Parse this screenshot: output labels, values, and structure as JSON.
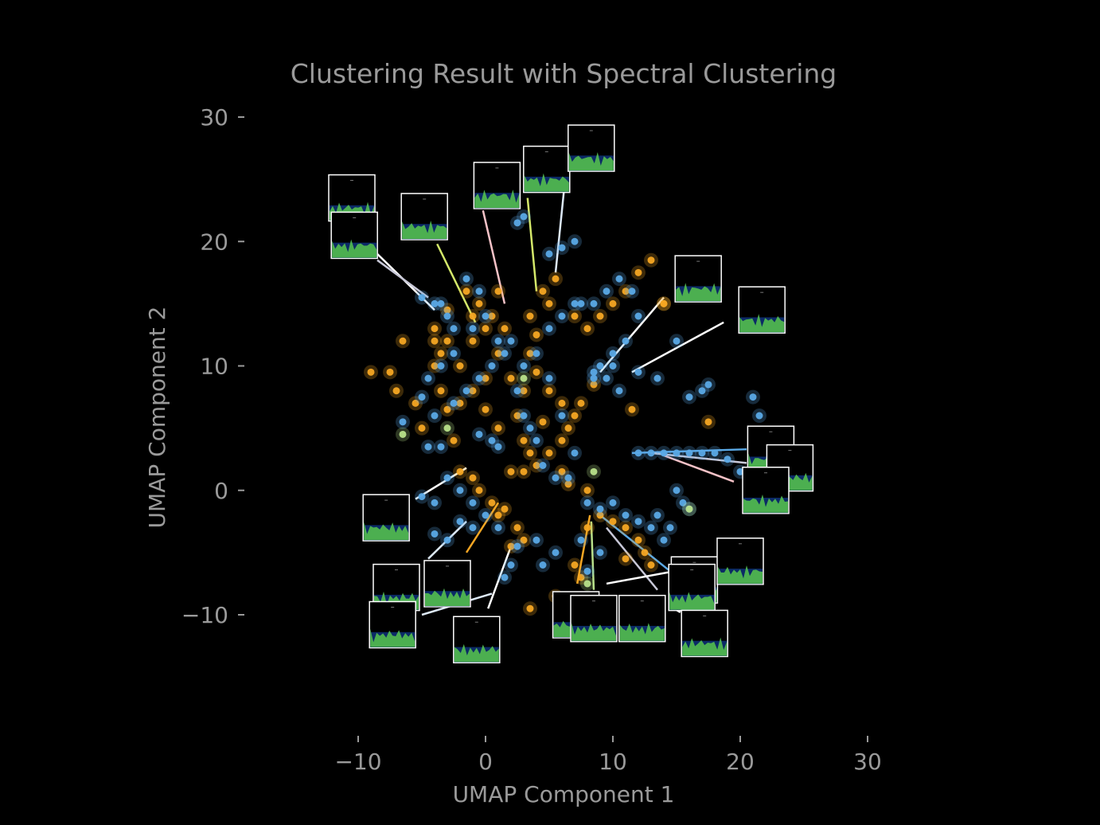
{
  "chart_data": {
    "type": "scatter",
    "title": "Clustering Result with Spectral Clustering",
    "xlabel": "UMAP Component 1",
    "ylabel": "UMAP Component 2",
    "xlim": [
      -12.5,
      30
    ],
    "ylim": [
      -20,
      31
    ],
    "xticks": [
      -10,
      0,
      10,
      20,
      30
    ],
    "yticks": [
      -10,
      0,
      10,
      20,
      30
    ],
    "xtick_labels": [
      "−10",
      "0",
      "10",
      "20",
      "30"
    ],
    "ytick_labels": [
      "−10",
      "0",
      "10",
      "20",
      "30"
    ],
    "grid": false,
    "legend": "none",
    "background": "#000000",
    "text_color": "#9a9a9a",
    "series": [
      {
        "color": "#f5a623",
        "points": [
          [
            -1.5,
            16
          ],
          [
            -0.5,
            15
          ],
          [
            0.5,
            14
          ],
          [
            1.5,
            13
          ],
          [
            1,
            11
          ],
          [
            0,
            9
          ],
          [
            -1,
            8
          ],
          [
            -2,
            7
          ],
          [
            -3,
            6.5
          ],
          [
            -3.5,
            8
          ],
          [
            -4,
            10
          ],
          [
            -3.5,
            11
          ],
          [
            -3,
            12
          ],
          [
            -2,
            10
          ],
          [
            -1,
            12
          ],
          [
            2,
            9
          ],
          [
            3,
            8
          ],
          [
            2.5,
            6
          ],
          [
            3,
            4
          ],
          [
            3.5,
            3
          ],
          [
            4,
            2
          ],
          [
            5,
            3
          ],
          [
            6,
            4
          ],
          [
            6.5,
            5
          ],
          [
            7,
            6
          ],
          [
            5,
            8
          ],
          [
            4,
            9.5
          ],
          [
            3.5,
            11
          ],
          [
            4,
            12.5
          ],
          [
            4.5,
            16
          ],
          [
            5.5,
            17
          ],
          [
            7,
            14
          ],
          [
            8,
            13
          ],
          [
            9,
            14
          ],
          [
            10,
            15
          ],
          [
            11,
            16
          ],
          [
            12,
            17.5
          ],
          [
            13,
            18.5
          ],
          [
            14,
            15
          ],
          [
            -9,
            9.5
          ],
          [
            -7.5,
            9.5
          ],
          [
            -7,
            8
          ],
          [
            -6.5,
            12
          ],
          [
            -5.5,
            7
          ],
          [
            -5,
            5
          ],
          [
            -2,
            1.5
          ],
          [
            -1,
            1
          ],
          [
            -0.5,
            0
          ],
          [
            0.5,
            -1
          ],
          [
            1,
            -2
          ],
          [
            2.5,
            -3
          ],
          [
            3,
            -4
          ],
          [
            2,
            -4.5
          ],
          [
            1.5,
            -1.5
          ],
          [
            2,
            1.5
          ],
          [
            3,
            1.5
          ],
          [
            6,
            1.5
          ],
          [
            6.5,
            0.5
          ],
          [
            8,
            0
          ],
          [
            7,
            -6
          ],
          [
            7.5,
            -7
          ],
          [
            8,
            -3
          ],
          [
            9,
            -2
          ],
          [
            10,
            -2.5
          ],
          [
            11,
            -3
          ],
          [
            12,
            -4
          ],
          [
            12.5,
            -5
          ],
          [
            13,
            -6
          ],
          [
            11,
            -5.5
          ],
          [
            3.5,
            -9.5
          ],
          [
            5.5,
            -8.5
          ],
          [
            11.5,
            6.5
          ],
          [
            17.5,
            5.5
          ],
          [
            14,
            15
          ],
          [
            1,
            5
          ],
          [
            0,
            6.5
          ],
          [
            -2.5,
            4
          ],
          [
            4.5,
            5.5
          ],
          [
            6,
            7
          ],
          [
            7.5,
            7
          ],
          [
            8.5,
            8.5
          ],
          [
            -4,
            12
          ],
          [
            -4,
            13
          ],
          [
            -3,
            14.5
          ],
          [
            -1,
            14
          ],
          [
            0,
            13
          ],
          [
            1,
            16
          ],
          [
            3.5,
            14
          ],
          [
            5,
            15
          ]
        ]
      },
      {
        "color": "#5aa9e6",
        "points": [
          [
            -1.5,
            17
          ],
          [
            -0.5,
            16
          ],
          [
            0,
            14
          ],
          [
            1,
            12
          ],
          [
            1.5,
            11
          ],
          [
            0.5,
            10
          ],
          [
            -0.5,
            9
          ],
          [
            -1.5,
            8
          ],
          [
            -2.5,
            7
          ],
          [
            -4,
            6
          ],
          [
            -5,
            7.5
          ],
          [
            -4.5,
            9
          ],
          [
            -3.5,
            10
          ],
          [
            -2.5,
            11
          ],
          [
            -1,
            13
          ],
          [
            2,
            12
          ],
          [
            3,
            10
          ],
          [
            2.5,
            8
          ],
          [
            3,
            6
          ],
          [
            3.5,
            5
          ],
          [
            4,
            4
          ],
          [
            4.5,
            2
          ],
          [
            5.5,
            1
          ],
          [
            6.5,
            1
          ],
          [
            7,
            3
          ],
          [
            6,
            6
          ],
          [
            5,
            9
          ],
          [
            4,
            11
          ],
          [
            5,
            13
          ],
          [
            6,
            14
          ],
          [
            7,
            15
          ],
          [
            7.5,
            15
          ],
          [
            8.5,
            15
          ],
          [
            9.5,
            16
          ],
          [
            10.5,
            17
          ],
          [
            11.5,
            16
          ],
          [
            12,
            14
          ],
          [
            11,
            12
          ],
          [
            10,
            11
          ],
          [
            9,
            10
          ],
          [
            8.5,
            9
          ],
          [
            9.5,
            9
          ],
          [
            10.5,
            8
          ],
          [
            12,
            9.5
          ],
          [
            13.5,
            9
          ],
          [
            15,
            12
          ],
          [
            16,
            7.5
          ],
          [
            17,
            8
          ],
          [
            17.5,
            8.5
          ],
          [
            21,
            7.5
          ],
          [
            21.5,
            6
          ],
          [
            12,
            3
          ],
          [
            13,
            3
          ],
          [
            14,
            3
          ],
          [
            15,
            3
          ],
          [
            16,
            3
          ],
          [
            17,
            3
          ],
          [
            18,
            3
          ],
          [
            19,
            2.5
          ],
          [
            20,
            1.5
          ],
          [
            15,
            0
          ],
          [
            15.5,
            -1
          ],
          [
            16,
            -1.5
          ],
          [
            -3,
            1
          ],
          [
            -2,
            0
          ],
          [
            -1,
            -1
          ],
          [
            0,
            -2
          ],
          [
            1,
            -3
          ],
          [
            -1,
            -3
          ],
          [
            -2,
            -2.5
          ],
          [
            -3,
            -4
          ],
          [
            -4,
            -3.5
          ],
          [
            -5,
            -0.5
          ],
          [
            -4,
            -1
          ],
          [
            1.5,
            -7
          ],
          [
            2,
            -6
          ],
          [
            2.5,
            -4.5
          ],
          [
            4,
            -4
          ],
          [
            4.5,
            -6
          ],
          [
            5.5,
            -5
          ],
          [
            -4.5,
            3.5
          ],
          [
            -3.5,
            3.5
          ],
          [
            -6.5,
            5.5
          ],
          [
            -0.5,
            4.5
          ],
          [
            0.5,
            4
          ],
          [
            1,
            3.5
          ],
          [
            8,
            -1
          ],
          [
            9,
            -1.5
          ],
          [
            10,
            -1
          ],
          [
            11,
            -2
          ],
          [
            12,
            -2.5
          ],
          [
            13,
            -3
          ],
          [
            14,
            -4
          ],
          [
            14.5,
            -3
          ],
          [
            13.5,
            -2
          ],
          [
            8,
            -6.5
          ],
          [
            9,
            -5
          ],
          [
            7.5,
            -4
          ],
          [
            5,
            19
          ],
          [
            6,
            19.5
          ],
          [
            7,
            20
          ],
          [
            2.5,
            21.5
          ],
          [
            3,
            22
          ],
          [
            -3,
            14
          ],
          [
            -2.5,
            13
          ],
          [
            -5,
            15.5
          ],
          [
            -4,
            15
          ],
          [
            -3.5,
            15
          ],
          [
            10,
            10
          ],
          [
            8.5,
            9.5
          ]
        ]
      },
      {
        "color": "#b8e08a",
        "points": [
          [
            -6.5,
            4.5
          ],
          [
            16,
            -1.5
          ],
          [
            8.5,
            1.5
          ],
          [
            8,
            -7.5
          ],
          [
            -3,
            5
          ],
          [
            3,
            9
          ]
        ]
      }
    ],
    "thumbnails": [
      {
        "x": -10.5,
        "y": 23.5,
        "line_from": [
          -8.5,
          19
        ],
        "line_to": [
          -4,
          14.5
        ],
        "line_color": "#ffffff"
      },
      {
        "x": -10.3,
        "y": 20.5,
        "line_from": [
          -8.5,
          18.5
        ],
        "line_to": [
          -4.5,
          15.5
        ],
        "line_color": "#c8c8d8"
      },
      {
        "x": -4.8,
        "y": 22,
        "line_from": [
          -3.8,
          19.8
        ],
        "line_to": [
          -0.8,
          13.5
        ],
        "line_color": "#d4e86a"
      },
      {
        "x": 0.9,
        "y": 24.5,
        "line_from": [
          -0.2,
          22.5
        ],
        "line_to": [
          1.5,
          15
        ],
        "line_color": "#f5c2c7"
      },
      {
        "x": 4.8,
        "y": 25.8,
        "line_from": [
          3.3,
          23.5
        ],
        "line_to": [
          4,
          16
        ],
        "line_color": "#d4e86a"
      },
      {
        "x": 8.3,
        "y": 27.5,
        "line_from": [
          6.3,
          25.5
        ],
        "line_to": [
          5.5,
          17.5
        ],
        "line_color": "#dce8f5"
      },
      {
        "x": 16.7,
        "y": 17,
        "line_from": [
          14,
          15.5
        ],
        "line_to": [
          9,
          9.5
        ],
        "line_color": "#ffffff"
      },
      {
        "x": 21.7,
        "y": 14.5,
        "line_from": [
          18.7,
          13.5
        ],
        "line_to": [
          11.5,
          9.5
        ],
        "line_color": "#ffffff"
      },
      {
        "x": 22.4,
        "y": 3.3,
        "line_from": [
          20.5,
          3.3
        ],
        "line_to": [
          11.5,
          3
        ],
        "line_color": "#5aa9e6"
      },
      {
        "x": 23.9,
        "y": 1.8,
        "line_from": [
          20.5,
          2.2
        ],
        "line_to": [
          13,
          3
        ],
        "line_color": "#c8c8d8"
      },
      {
        "x": 22,
        "y": 0,
        "line_from": [
          19.5,
          0.7
        ],
        "line_to": [
          14,
          2.8
        ],
        "line_color": "#f5c2c7"
      },
      {
        "x": -7.8,
        "y": -2.2,
        "line_from": [
          -5.5,
          -0.7
        ],
        "line_to": [
          -1.5,
          1.8
        ],
        "line_color": "#ffffff"
      },
      {
        "x": -7,
        "y": -7.8,
        "line_from": [
          -4.5,
          -5.5
        ],
        "line_to": [
          -1.5,
          -2.5
        ],
        "line_color": "#dce8f5"
      },
      {
        "x": -3,
        "y": -7.5,
        "line_from": [
          -1.5,
          -5
        ],
        "line_to": [
          1,
          -1
        ],
        "line_color": "#f5a623"
      },
      {
        "x": -7.3,
        "y": -10.8,
        "line_from": [
          -5,
          -10
        ],
        "line_to": [
          0.5,
          -8.3
        ],
        "line_color": "#dce8f5"
      },
      {
        "x": -0.7,
        "y": -12,
        "line_from": [
          0.2,
          -9.5
        ],
        "line_to": [
          2,
          -4.5
        ],
        "line_color": "#ffffff"
      },
      {
        "x": 7.1,
        "y": -10,
        "line_from": [
          7.2,
          -7.5
        ],
        "line_to": [
          8.2,
          -2
        ],
        "line_color": "#f5a623"
      },
      {
        "x": 8.5,
        "y": -10.3,
        "line_from": [
          8.5,
          -8
        ],
        "line_to": [
          8.3,
          -2.5
        ],
        "line_color": "#b8e08a"
      },
      {
        "x": 12.3,
        "y": -10.3,
        "line_from": [
          13,
          -9.5
        ],
        "line_to": [
          12.5,
          -9.5
        ],
        "line_color": "#ffffff"
      },
      {
        "x": 16.4,
        "y": -7.2,
        "line_from": [
          14.5,
          -6.5
        ],
        "line_to": [
          9,
          -2
        ],
        "line_color": "#5aa9e6"
      },
      {
        "x": 16.2,
        "y": -7.8,
        "line_from": [
          13.5,
          -8
        ],
        "line_to": [
          9.5,
          -3
        ],
        "line_color": "#c8c8d8"
      },
      {
        "x": 20,
        "y": -5.7,
        "line_from": [
          17.5,
          -6
        ],
        "line_to": [
          9.5,
          -7.5
        ],
        "line_color": "#ffffff"
      },
      {
        "x": 17.2,
        "y": -11.5,
        "line_from": [
          15.3,
          -9.8
        ],
        "line_to": [
          14.8,
          -9.5
        ],
        "line_color": "#ffffff"
      }
    ]
  }
}
